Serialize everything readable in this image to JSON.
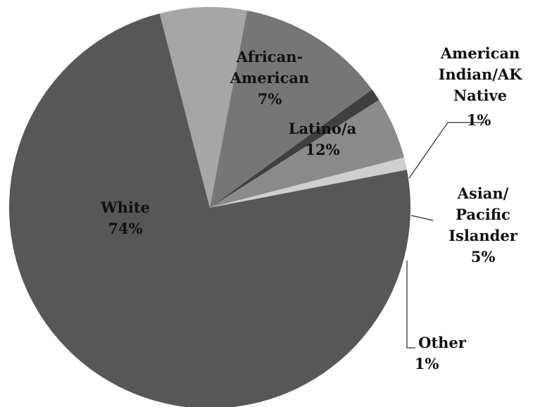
{
  "chart_data": {
    "type": "pie",
    "slices": [
      {
        "label_lines": [
          "African-",
          "American"
        ],
        "percent_label": "7%",
        "value": 7,
        "color": "#a6a6a6"
      },
      {
        "label_lines": [
          "Latino/a"
        ],
        "percent_label": "12%",
        "value": 12,
        "color": "#767676"
      },
      {
        "label_lines": [
          "American",
          "Indian/AK",
          "Native"
        ],
        "percent_label": "1%",
        "value": 1,
        "color": "#3f3f3f"
      },
      {
        "label_lines": [
          "Asian/",
          "Pacific",
          "Islander"
        ],
        "percent_label": "5%",
        "value": 5,
        "color": "#8a8a8a"
      },
      {
        "label_lines": [
          "Other"
        ],
        "percent_label": "1%",
        "value": 1,
        "color": "#cfcfcf"
      },
      {
        "label_lines": [
          "White"
        ],
        "percent_label": "74%",
        "value": 74,
        "color": "#575757"
      }
    ]
  }
}
